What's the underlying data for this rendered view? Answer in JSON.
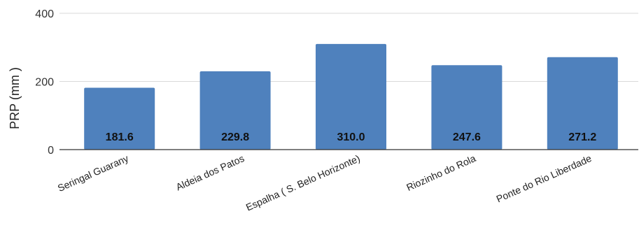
{
  "chart_data": {
    "type": "bar",
    "title": "",
    "xlabel": "",
    "ylabel": "PRP (mm )",
    "ylim": [
      0,
      400
    ],
    "yticks": [
      0,
      200,
      400
    ],
    "grid": true,
    "categories": [
      "Seringal Guarany",
      "Aldeia dos Patos",
      "Espalha ( S. Belo Horizonte)",
      "Riozinho do Rola",
      "Ponte do Rio Liberdade"
    ],
    "values": [
      181.6,
      229.8,
      310.0,
      247.6,
      271.2
    ],
    "data_labels": [
      "181.6",
      "229.8",
      "310.0",
      "247.6",
      "271.2"
    ],
    "bar_color": "#4f81bd"
  }
}
